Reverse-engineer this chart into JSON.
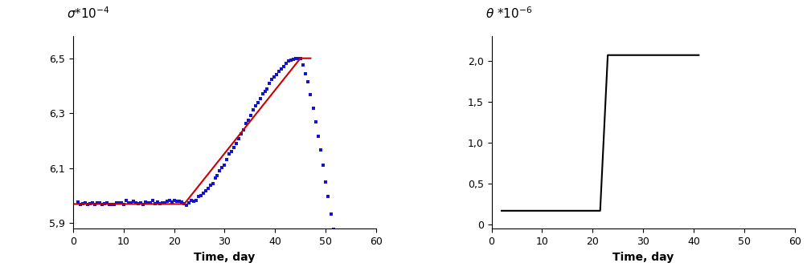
{
  "left_xlabel": "Time, day",
  "left_ylim": [
    5.88,
    6.58
  ],
  "left_xlim": [
    0,
    60
  ],
  "left_yticks": [
    5.9,
    6.1,
    6.3,
    6.5
  ],
  "left_xticks": [
    0,
    10,
    20,
    30,
    40,
    50,
    60
  ],
  "right_xlabel": "Time, day",
  "right_ylim": [
    -0.05,
    2.3
  ],
  "right_xlim": [
    0,
    60
  ],
  "right_yticks": [
    0,
    0.5,
    1.0,
    1.5,
    2.0
  ],
  "right_xticks": [
    0,
    10,
    20,
    30,
    40,
    50,
    60
  ],
  "red_line_x": [
    0,
    22,
    45,
    47
  ],
  "red_line_y": [
    5.97,
    5.97,
    6.5,
    6.5
  ],
  "right_line_x": [
    2,
    21,
    21.5,
    23,
    41
  ],
  "right_line_y": [
    0.17,
    0.17,
    0.17,
    2.07,
    2.07
  ],
  "dot_color": "#1414cc",
  "red_color": "#cc0000",
  "black_color": "#000000",
  "left_ytick_labels": [
    "5,9",
    "6,1",
    "6,3",
    "6,5"
  ],
  "right_ytick_labels": [
    "0",
    "0,5",
    "1,0",
    "1,5",
    "2,0"
  ]
}
